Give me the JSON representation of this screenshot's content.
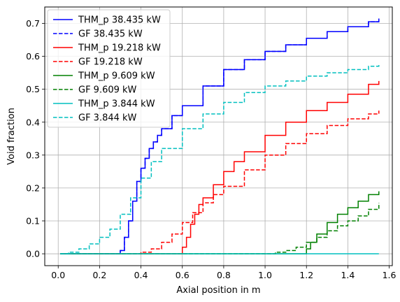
{
  "chart_data": {
    "type": "line",
    "step": true,
    "xlabel": "Axial position in m",
    "ylabel": "Void fraction",
    "xlim": [
      -0.065,
      1.615
    ],
    "ylim": [
      -0.036,
      0.75
    ],
    "xticks": [
      0.0,
      0.2,
      0.4,
      0.6,
      0.8,
      1.0,
      1.2,
      1.4,
      1.6
    ],
    "xtick_labels": [
      "0.0",
      "0.2",
      "0.4",
      "0.6",
      "0.8",
      "1.0",
      "1.2",
      "1.4",
      "1.6"
    ],
    "yticks": [
      0.0,
      0.1,
      0.2,
      0.3,
      0.4,
      0.5,
      0.6,
      0.7
    ],
    "ytick_labels": [
      "0.0",
      "0.1",
      "0.2",
      "0.3",
      "0.4",
      "0.5",
      "0.6",
      "0.7"
    ],
    "grid": true,
    "legend_position": "upper-left",
    "series": [
      {
        "name": "THM_p 38.435 kW",
        "color": "#0000ff",
        "dash": "solid",
        "x": [
          0.01,
          0.28,
          0.3,
          0.32,
          0.34,
          0.36,
          0.38,
          0.4,
          0.42,
          0.44,
          0.46,
          0.48,
          0.5,
          0.55,
          0.6,
          0.7,
          0.8,
          0.9,
          1.0,
          1.1,
          1.2,
          1.3,
          1.4,
          1.5,
          1.55
        ],
        "y": [
          0.0,
          0.0,
          0.01,
          0.05,
          0.1,
          0.16,
          0.22,
          0.26,
          0.29,
          0.32,
          0.34,
          0.36,
          0.38,
          0.42,
          0.45,
          0.51,
          0.56,
          0.59,
          0.615,
          0.635,
          0.655,
          0.675,
          0.69,
          0.705,
          0.715
        ]
      },
      {
        "name": "GF 38.435 kW",
        "color": "#0000ff",
        "dash": "dashed",
        "x": [
          0.01,
          0.28,
          0.3,
          0.32,
          0.34,
          0.36,
          0.38,
          0.4,
          0.42,
          0.44,
          0.46,
          0.48,
          0.5,
          0.55,
          0.6,
          0.7,
          0.8,
          0.9,
          1.0,
          1.1,
          1.2,
          1.3,
          1.4,
          1.5,
          1.55
        ],
        "y": [
          0.0,
          0.0,
          0.01,
          0.05,
          0.1,
          0.16,
          0.22,
          0.26,
          0.29,
          0.32,
          0.34,
          0.36,
          0.38,
          0.42,
          0.45,
          0.51,
          0.56,
          0.59,
          0.615,
          0.635,
          0.655,
          0.675,
          0.69,
          0.705,
          0.715
        ]
      },
      {
        "name": "THM_p 19.218 kW",
        "color": "#ff0000",
        "dash": "solid",
        "x": [
          0.01,
          0.58,
          0.6,
          0.62,
          0.64,
          0.66,
          0.68,
          0.7,
          0.75,
          0.8,
          0.85,
          0.9,
          1.0,
          1.1,
          1.2,
          1.3,
          1.4,
          1.5,
          1.55
        ],
        "y": [
          0.0,
          0.0,
          0.02,
          0.05,
          0.09,
          0.12,
          0.15,
          0.17,
          0.21,
          0.25,
          0.28,
          0.31,
          0.36,
          0.4,
          0.435,
          0.46,
          0.485,
          0.515,
          0.525
        ]
      },
      {
        "name": "GF 19.218 kW",
        "color": "#ff0000",
        "dash": "dashed",
        "x": [
          0.01,
          0.34,
          0.4,
          0.45,
          0.5,
          0.55,
          0.6,
          0.65,
          0.7,
          0.75,
          0.8,
          0.9,
          1.0,
          1.1,
          1.2,
          1.3,
          1.4,
          1.5,
          1.55
        ],
        "y": [
          0.0,
          0.0,
          0.005,
          0.015,
          0.035,
          0.06,
          0.095,
          0.125,
          0.155,
          0.18,
          0.205,
          0.255,
          0.3,
          0.335,
          0.365,
          0.39,
          0.41,
          0.425,
          0.435
        ]
      },
      {
        "name": "THM_p 9.609 kW",
        "color": "#008000",
        "dash": "solid",
        "x": [
          0.01,
          1.18,
          1.2,
          1.22,
          1.25,
          1.3,
          1.35,
          1.4,
          1.45,
          1.5,
          1.55
        ],
        "y": [
          0.0,
          0.0,
          0.015,
          0.035,
          0.06,
          0.095,
          0.12,
          0.14,
          0.16,
          0.18,
          0.19
        ]
      },
      {
        "name": "GF 9.609 kW",
        "color": "#008000",
        "dash": "dashed",
        "x": [
          0.01,
          0.98,
          1.05,
          1.1,
          1.15,
          1.2,
          1.25,
          1.3,
          1.35,
          1.4,
          1.45,
          1.5,
          1.55
        ],
        "y": [
          0.0,
          0.0,
          0.005,
          0.01,
          0.02,
          0.035,
          0.05,
          0.07,
          0.085,
          0.1,
          0.115,
          0.135,
          0.155
        ]
      },
      {
        "name": "THM_p 3.844 kW",
        "color": "#00bfbf",
        "dash": "solid",
        "x": [
          0.01,
          1.55
        ],
        "y": [
          0.0,
          0.0
        ]
      },
      {
        "name": "GF 3.844 kW",
        "color": "#00bfbf",
        "dash": "dashed",
        "x": [
          0.01,
          0.05,
          0.1,
          0.15,
          0.2,
          0.25,
          0.3,
          0.35,
          0.4,
          0.45,
          0.5,
          0.6,
          0.7,
          0.8,
          0.9,
          1.0,
          1.1,
          1.2,
          1.3,
          1.4,
          1.5,
          1.55
        ],
        "y": [
          0.0,
          0.005,
          0.015,
          0.03,
          0.05,
          0.075,
          0.12,
          0.17,
          0.23,
          0.28,
          0.32,
          0.38,
          0.425,
          0.46,
          0.49,
          0.51,
          0.525,
          0.54,
          0.55,
          0.56,
          0.57,
          0.575
        ]
      }
    ]
  }
}
